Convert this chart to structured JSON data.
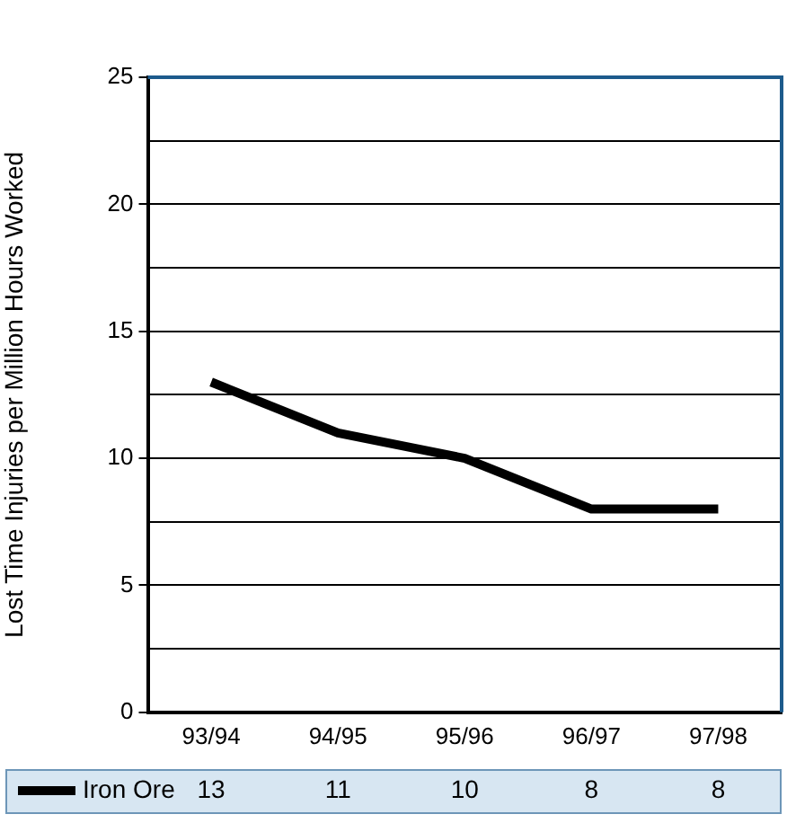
{
  "chart_data": {
    "type": "line",
    "ylabel": "Lost Time Injuries per Million Hours Worked",
    "categories": [
      "93/94",
      "94/95",
      "95/96",
      "96/97",
      "97/98"
    ],
    "series": [
      {
        "name": "Iron Ore",
        "color": "#000000",
        "values": [
          13,
          11,
          10,
          8,
          8
        ]
      }
    ],
    "ylim": [
      0,
      25
    ],
    "yticks": [
      0,
      {
        "value": 2.5,
        "label": null
      },
      5,
      {
        "value": 7.5,
        "label": null
      },
      10,
      {
        "value": 12.5,
        "label": null
      },
      15,
      {
        "value": 17.5,
        "label": null
      },
      20,
      {
        "value": 22.5,
        "label": null
      },
      25
    ],
    "grid": "y",
    "legend": "bottom",
    "data_labels": true,
    "marker": "none",
    "line_style": "solid"
  }
}
